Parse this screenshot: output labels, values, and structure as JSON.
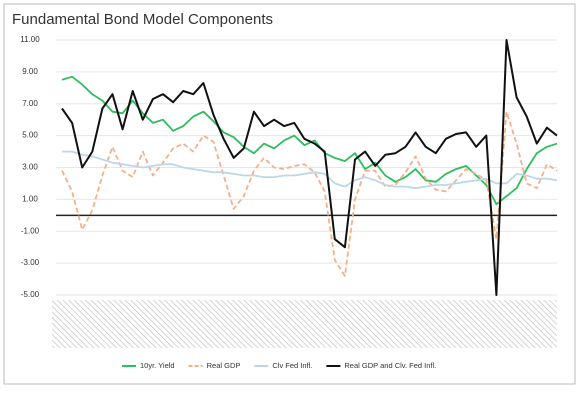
{
  "chart_data": {
    "type": "line",
    "title": "Fundamental Bond Model Components",
    "categories": [
      null,
      null,
      null,
      null,
      null,
      null,
      null,
      null,
      null,
      null,
      null,
      null,
      null,
      null,
      null,
      null,
      null,
      null,
      null,
      null,
      null,
      null,
      null,
      null,
      null,
      null,
      null,
      null,
      null,
      null,
      null,
      null,
      null,
      null,
      null,
      null,
      null,
      null,
      null,
      null,
      null,
      null,
      null,
      null,
      null,
      null,
      null,
      null,
      null,
      null
    ],
    "series": [
      {
        "name": "10yr. Yield",
        "color": "#2ebd5f",
        "dash": false,
        "values": [
          8.5,
          8.7,
          8.2,
          7.6,
          7.2,
          6.5,
          6.4,
          7.2,
          6.4,
          5.8,
          6.0,
          5.3,
          5.6,
          6.2,
          6.5,
          5.9,
          5.2,
          4.9,
          4.3,
          3.9,
          4.5,
          4.2,
          4.7,
          5.0,
          4.4,
          4.7,
          3.9,
          3.6,
          3.4,
          3.9,
          2.9,
          3.3,
          2.5,
          2.1,
          2.4,
          2.9,
          2.2,
          2.1,
          2.6,
          2.9,
          3.1,
          2.5,
          1.9,
          0.7,
          1.2,
          1.7,
          2.9,
          3.9,
          4.3,
          4.5
        ]
      },
      {
        "name": "Real GDP",
        "color": "#f4b08a",
        "dash": true,
        "values": [
          2.8,
          1.5,
          -0.9,
          0.3,
          2.5,
          4.3,
          2.8,
          2.4,
          4.0,
          2.5,
          3.3,
          4.2,
          4.5,
          4.0,
          5.0,
          4.6,
          2.5,
          0.4,
          1.2,
          2.8,
          3.6,
          3.0,
          2.9,
          3.1,
          3.2,
          2.7,
          1.5,
          -2.8,
          -3.8,
          1.0,
          2.8,
          2.8,
          1.8,
          1.9,
          2.7,
          3.7,
          2.3,
          1.6,
          1.5,
          2.2,
          2.9,
          2.6,
          2.2,
          -1.5,
          6.5,
          4.5,
          2.0,
          1.7,
          3.2,
          2.8
        ]
      },
      {
        "name": "Clv Fed Infl.",
        "color": "#bcd7e8",
        "dash": false,
        "values": [
          4.0,
          4.0,
          3.8,
          3.7,
          3.5,
          3.3,
          3.2,
          3.1,
          3.0,
          3.1,
          3.2,
          3.2,
          3.0,
          2.9,
          2.8,
          2.7,
          2.7,
          2.6,
          2.5,
          2.5,
          2.4,
          2.4,
          2.5,
          2.5,
          2.6,
          2.7,
          2.6,
          2.0,
          1.8,
          2.2,
          2.4,
          2.2,
          1.9,
          1.8,
          1.8,
          1.7,
          1.8,
          1.9,
          1.9,
          2.0,
          2.1,
          2.2,
          2.3,
          2.0,
          2.0,
          2.6,
          2.5,
          2.3,
          2.3,
          2.2
        ]
      },
      {
        "name": "Real GDP and Clv. Fed Infl.",
        "color": "#111111",
        "dash": false,
        "values": [
          6.7,
          5.8,
          3.0,
          4.0,
          6.7,
          7.6,
          5.4,
          7.8,
          6.0,
          7.3,
          7.6,
          7.1,
          7.8,
          7.6,
          8.3,
          6.3,
          4.8,
          3.6,
          4.2,
          6.5,
          5.6,
          6.0,
          5.6,
          5.8,
          4.8,
          4.5,
          4.0,
          -1.5,
          -2.0,
          3.5,
          4.0,
          3.1,
          3.8,
          3.9,
          4.3,
          5.2,
          4.3,
          3.9,
          4.8,
          5.1,
          5.2,
          4.3,
          5.0,
          -5.0,
          11.0,
          7.4,
          6.2,
          4.5,
          5.5,
          5.0
        ]
      }
    ],
    "ylim": [
      -5,
      11
    ],
    "yticks": [
      {
        "value": 11,
        "label": "11.00"
      },
      {
        "value": 9,
        "label": "9.00"
      },
      {
        "value": 7,
        "label": "7.00"
      },
      {
        "value": 5,
        "label": "5.00"
      },
      {
        "value": 3,
        "label": "3.00"
      },
      {
        "value": 1,
        "label": "1.00"
      },
      {
        "value": -1,
        "label": "-1.00"
      },
      {
        "value": -3,
        "label": "-3.00"
      },
      {
        "value": -5,
        "label": "-5.00"
      }
    ],
    "grid": true,
    "zero_line": true,
    "legend": "bottom"
  }
}
